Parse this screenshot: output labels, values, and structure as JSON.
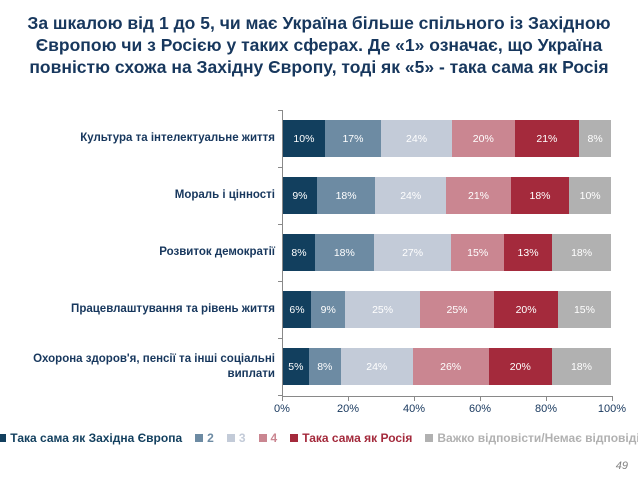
{
  "slide": {
    "title": "За шкалою від 1 до 5, чи має Україна більше спільного із Західною Європою чи з Росією у таких сферах. Де «1» означає, що Україна повністю схожа на Західну Європу, тоді як «5» - така сама як Росія",
    "page_number": "49"
  },
  "colors": {
    "title_text": "#17375d",
    "axis_line": "#898989",
    "segment_label_text": "#ffffff",
    "page_number_text": "#808080"
  },
  "chart_data": {
    "type": "bar",
    "stacked": true,
    "orientation": "horizontal",
    "value_suffix": "%",
    "categories": [
      "Культура та інтелектуальне життя",
      "Мораль і цінності",
      "Розвиток демократії",
      "Працевлаштування та рівень життя",
      "Охорона здоров'я, пенсії та інші соціальні виплати"
    ],
    "series": [
      {
        "name": "Така сама як Західна Європа",
        "color": "#123f5e",
        "values": [
          10,
          9,
          8,
          6,
          5
        ]
      },
      {
        "name": "2",
        "color": "#6d8ba3",
        "values": [
          17,
          18,
          18,
          9,
          8
        ]
      },
      {
        "name": "3",
        "color": "#c3cbd8",
        "values": [
          24,
          24,
          27,
          25,
          24
        ]
      },
      {
        "name": "4",
        "color": "#ca8691",
        "values": [
          20,
          21,
          15,
          25,
          26
        ]
      },
      {
        "name": "Така сама як Росія",
        "color": "#a42a3c",
        "values": [
          21,
          18,
          13,
          20,
          20
        ]
      },
      {
        "name": "Важко відповісти/Немає відповіді",
        "color": "#b1b1b1",
        "values": [
          8,
          10,
          18,
          15,
          18
        ]
      }
    ],
    "x_ticks": [
      "0%",
      "20%",
      "40%",
      "60%",
      "80%",
      "100%"
    ],
    "xlim": [
      0,
      100
    ],
    "grid": false,
    "legend_position": "bottom"
  }
}
